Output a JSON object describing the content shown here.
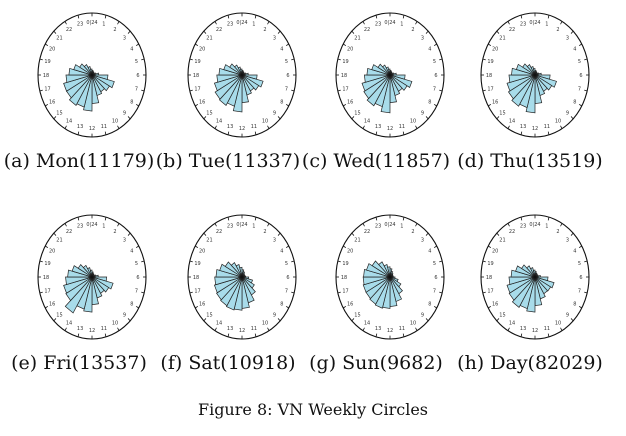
{
  "chart_data": {
    "type": "polar-bar",
    "hour_labels": [
      "0|24",
      "1",
      "2",
      "3",
      "4",
      "5",
      "6",
      "7",
      "8",
      "9",
      "10",
      "11",
      "12",
      "13",
      "14",
      "15",
      "16",
      "17",
      "18",
      "19",
      "20",
      "21",
      "22",
      "23"
    ],
    "colors": {
      "fill": "#a8dcea",
      "outline": "#222222",
      "ring": "#111111"
    },
    "panels": [
      {
        "caption": "(a) Mon(11179)",
        "values": [
          0.1,
          0.08,
          0.07,
          0.06,
          0.09,
          0.16,
          0.38,
          0.55,
          0.48,
          0.42,
          0.46,
          0.62,
          0.78,
          0.72,
          0.76,
          0.7,
          0.7,
          0.62,
          0.55,
          0.45,
          0.34,
          0.26,
          0.19,
          0.13
        ]
      },
      {
        "caption": "(b) Tue(11337)",
        "values": [
          0.1,
          0.08,
          0.07,
          0.06,
          0.09,
          0.15,
          0.36,
          0.52,
          0.46,
          0.4,
          0.45,
          0.6,
          0.8,
          0.7,
          0.76,
          0.74,
          0.68,
          0.6,
          0.55,
          0.45,
          0.34,
          0.25,
          0.18,
          0.13
        ]
      },
      {
        "caption": "(c) Wed(11857)",
        "values": [
          0.1,
          0.08,
          0.07,
          0.06,
          0.09,
          0.15,
          0.36,
          0.54,
          0.47,
          0.41,
          0.46,
          0.6,
          0.82,
          0.71,
          0.77,
          0.72,
          0.69,
          0.61,
          0.55,
          0.45,
          0.33,
          0.25,
          0.18,
          0.13
        ]
      },
      {
        "caption": "(d) Thu(13519)",
        "values": [
          0.1,
          0.08,
          0.07,
          0.06,
          0.09,
          0.15,
          0.36,
          0.53,
          0.46,
          0.41,
          0.46,
          0.62,
          0.82,
          0.73,
          0.78,
          0.73,
          0.69,
          0.62,
          0.56,
          0.46,
          0.34,
          0.26,
          0.19,
          0.14
        ]
      },
      {
        "caption": "(e) Fri(13537)",
        "values": [
          0.11,
          0.08,
          0.07,
          0.06,
          0.09,
          0.15,
          0.35,
          0.52,
          0.46,
          0.41,
          0.47,
          0.6,
          0.76,
          0.72,
          0.9,
          0.72,
          0.7,
          0.63,
          0.58,
          0.49,
          0.38,
          0.29,
          0.21,
          0.15
        ]
      },
      {
        "caption": "(f) Sat(10918)",
        "values": [
          0.16,
          0.12,
          0.09,
          0.07,
          0.07,
          0.09,
          0.16,
          0.26,
          0.34,
          0.45,
          0.58,
          0.68,
          0.72,
          0.74,
          0.72,
          0.7,
          0.68,
          0.65,
          0.62,
          0.55,
          0.46,
          0.36,
          0.28,
          0.21
        ]
      },
      {
        "caption": "(g) Sun(9682)",
        "values": [
          0.18,
          0.13,
          0.1,
          0.08,
          0.07,
          0.08,
          0.12,
          0.2,
          0.3,
          0.42,
          0.55,
          0.64,
          0.68,
          0.7,
          0.68,
          0.66,
          0.66,
          0.64,
          0.63,
          0.58,
          0.49,
          0.38,
          0.28,
          0.22
        ]
      },
      {
        "caption": "(h) Day(82029)",
        "values": [
          0.12,
          0.09,
          0.08,
          0.06,
          0.08,
          0.13,
          0.31,
          0.47,
          0.43,
          0.42,
          0.49,
          0.62,
          0.76,
          0.71,
          0.76,
          0.71,
          0.69,
          0.62,
          0.57,
          0.48,
          0.37,
          0.28,
          0.21,
          0.15
        ]
      }
    ]
  },
  "figure_caption": "Figure 8: VN Weekly Circles"
}
